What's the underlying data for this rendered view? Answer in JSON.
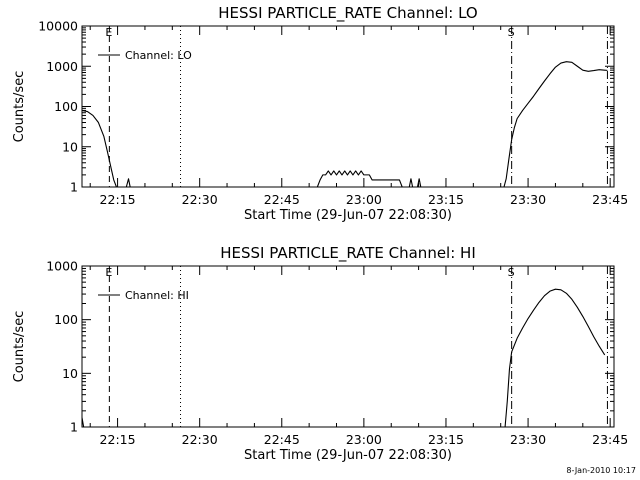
{
  "figure": {
    "timestamp": "8-Jan-2010 10:17"
  },
  "chart_data": [
    {
      "type": "line",
      "title": "HESSI PARTICLE_RATE Channel: LO",
      "xlabel": "Start Time (29-Jun-07 22:08:30)",
      "ylabel": "Counts/sec",
      "yscale": "log",
      "ylim": [
        1,
        10000
      ],
      "xlim_min": [
        8.5,
        45.7
      ],
      "yticks": [
        {
          "value": 1,
          "label": "1"
        },
        {
          "value": 10,
          "label": "10"
        },
        {
          "value": 100,
          "label": "100"
        },
        {
          "value": 1000,
          "label": "1000"
        },
        {
          "value": 10000,
          "label": "10000"
        }
      ],
      "xticks": [
        {
          "value": 15,
          "label": "22:15"
        },
        {
          "value": 30,
          "label": "22:30"
        },
        {
          "value": 45,
          "label": "22:45"
        },
        {
          "value": 60,
          "label": "23:00"
        },
        {
          "value": 75,
          "label": "23:15"
        },
        {
          "value": 90,
          "label": "23:30"
        },
        {
          "value": 105,
          "label": "23:45"
        }
      ],
      "legend": {
        "label": "Channel: LO",
        "position": "top-left"
      },
      "vlines": [
        {
          "x": 13.5,
          "style": "dashed",
          "label": "E"
        },
        {
          "x": 26.5,
          "style": "dotted",
          "label": ""
        },
        {
          "x": 87.0,
          "style": "dashdot",
          "label": "S"
        },
        {
          "x": 104.5,
          "style": "dashdot",
          "label": ""
        }
      ],
      "series": [
        {
          "segments": [
            [
              [
                8.5,
                80
              ],
              [
                9.5,
                75
              ],
              [
                10.5,
                60
              ],
              [
                11.5,
                40
              ],
              [
                12.5,
                18
              ],
              [
                13.2,
                7
              ],
              [
                13.8,
                3
              ],
              [
                14.3,
                1.5
              ],
              [
                14.8,
                1
              ]
            ],
            [
              [
                16.6,
                1
              ],
              [
                17.0,
                1.6
              ],
              [
                17.3,
                1
              ]
            ],
            [
              [
                51.5,
                1
              ],
              [
                52.0,
                1.5
              ],
              [
                52.5,
                2
              ],
              [
                53.0,
                2
              ],
              [
                53.5,
                2.5
              ],
              [
                54.0,
                2
              ],
              [
                54.5,
                2.5
              ],
              [
                55.0,
                2
              ],
              [
                55.5,
                2.5
              ],
              [
                56.0,
                2
              ],
              [
                56.5,
                2.5
              ],
              [
                57.0,
                2
              ],
              [
                57.5,
                2.5
              ],
              [
                58.0,
                2
              ],
              [
                58.5,
                2.5
              ],
              [
                59.0,
                2
              ],
              [
                59.5,
                2.5
              ],
              [
                60.0,
                2
              ],
              [
                60.5,
                2
              ],
              [
                61.0,
                2
              ],
              [
                61.5,
                1.5
              ],
              [
                62.0,
                1.5
              ],
              [
                63.0,
                1.5
              ],
              [
                65.0,
                1.5
              ],
              [
                66.5,
                1.5
              ],
              [
                67.0,
                1
              ]
            ],
            [
              [
                68.3,
                1
              ],
              [
                68.6,
                1.6
              ],
              [
                68.9,
                1
              ]
            ],
            [
              [
                69.8,
                1
              ],
              [
                70.1,
                1.6
              ],
              [
                70.4,
                1
              ]
            ],
            [
              [
                85.6,
                1
              ],
              [
                86.0,
                1.6
              ],
              [
                86.5,
                5
              ],
              [
                87.0,
                15
              ],
              [
                87.5,
                30
              ],
              [
                88.0,
                50
              ],
              [
                89.0,
                80
              ],
              [
                90.0,
                120
              ],
              [
                91.0,
                180
              ],
              [
                92.0,
                280
              ],
              [
                93.0,
                430
              ],
              [
                94.0,
                650
              ],
              [
                95.0,
                950
              ],
              [
                96.0,
                1200
              ],
              [
                97.0,
                1300
              ],
              [
                98.0,
                1250
              ],
              [
                99.0,
                1000
              ],
              [
                100.0,
                800
              ],
              [
                101.0,
                750
              ],
              [
                102.0,
                780
              ],
              [
                103.0,
                820
              ],
              [
                104.0,
                800
              ],
              [
                104.5,
                790
              ]
            ]
          ]
        }
      ]
    },
    {
      "type": "line",
      "title": "HESSI PARTICLE_RATE Channel: HI",
      "xlabel": "Start Time (29-Jun-07 22:08:30)",
      "ylabel": "Counts/sec",
      "yscale": "log",
      "ylim": [
        1,
        1000
      ],
      "xlim_min": [
        8.5,
        45.7
      ],
      "yticks": [
        {
          "value": 1,
          "label": "1"
        },
        {
          "value": 10,
          "label": "10"
        },
        {
          "value": 100,
          "label": "100"
        },
        {
          "value": 1000,
          "label": "1000"
        }
      ],
      "xticks": [
        {
          "value": 15,
          "label": "22:15"
        },
        {
          "value": 30,
          "label": "22:30"
        },
        {
          "value": 45,
          "label": "22:45"
        },
        {
          "value": 60,
          "label": "23:00"
        },
        {
          "value": 75,
          "label": "23:15"
        },
        {
          "value": 90,
          "label": "23:30"
        },
        {
          "value": 105,
          "label": "23:45"
        }
      ],
      "legend": {
        "label": "Channel: HI",
        "position": "top-left"
      },
      "vlines": [
        {
          "x": 13.5,
          "style": "dashed",
          "label": "E"
        },
        {
          "x": 26.5,
          "style": "dotted",
          "label": ""
        },
        {
          "x": 87.0,
          "style": "dashdot",
          "label": "S"
        },
        {
          "x": 104.5,
          "style": "dashdot",
          "label": ""
        }
      ],
      "series": [
        {
          "segments": [
            [
              [
                8.5,
                1.5
              ],
              [
                8.8,
                1
              ]
            ],
            [
              [
                85.8,
                1
              ],
              [
                86.2,
                3
              ],
              [
                86.6,
                12
              ],
              [
                87.0,
                25
              ],
              [
                88.0,
                45
              ],
              [
                89.0,
                70
              ],
              [
                90.0,
                105
              ],
              [
                91.0,
                150
              ],
              [
                92.0,
                210
              ],
              [
                93.0,
                280
              ],
              [
                94.0,
                340
              ],
              [
                95.0,
                370
              ],
              [
                96.0,
                360
              ],
              [
                97.0,
                310
              ],
              [
                98.0,
                240
              ],
              [
                99.0,
                170
              ],
              [
                100.0,
                115
              ],
              [
                101.0,
                75
              ],
              [
                102.0,
                48
              ],
              [
                103.0,
                32
              ],
              [
                104.0,
                22
              ]
            ]
          ]
        }
      ]
    }
  ]
}
